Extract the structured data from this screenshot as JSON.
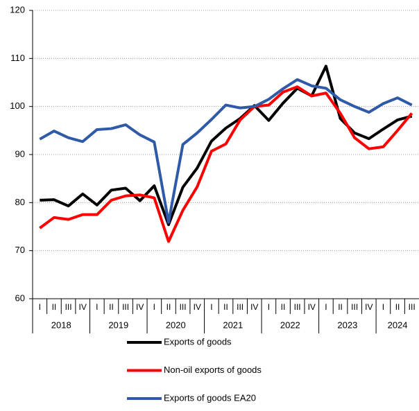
{
  "chart_data": {
    "type": "line",
    "categories": [
      "I",
      "II",
      "III",
      "IV",
      "I",
      "II",
      "III",
      "IV",
      "I",
      "II",
      "III",
      "IV",
      "I",
      "II",
      "III",
      "IV",
      "I",
      "II",
      "III",
      "IV",
      "I",
      "II",
      "III",
      "IV",
      "I",
      "II",
      "III"
    ],
    "years": [
      "2018",
      "2019",
      "2020",
      "2021",
      "2022",
      "2023",
      "2024"
    ],
    "series": [
      {
        "name": "Exports of goods",
        "color": "#000000",
        "values": [
          80.5,
          80.6,
          79.3,
          81.8,
          79.5,
          82.6,
          83.0,
          80.4,
          83.5,
          75.4,
          83.2,
          87.2,
          92.8,
          95.5,
          97.5,
          100.2,
          97.1,
          100.7,
          103.8,
          102.2,
          108.4,
          97.5,
          94.5,
          93.3,
          95.3,
          97.2,
          98.0
        ]
      },
      {
        "name": "Non-oil exports of goods",
        "color": "#ff0000",
        "values": [
          74.7,
          76.9,
          76.5,
          77.5,
          77.5,
          80.5,
          81.4,
          81.6,
          81.0,
          71.9,
          78.4,
          83.3,
          90.7,
          92.2,
          97.2,
          100.0,
          100.3,
          103.0,
          104.1,
          102.2,
          102.8,
          98.6,
          93.5,
          91.2,
          91.6,
          95.0,
          98.6
        ]
      },
      {
        "name": "Exports of goods EA20",
        "color": "#2f5aa8",
        "values": [
          93.2,
          94.9,
          93.5,
          92.7,
          95.2,
          95.4,
          96.2,
          94.1,
          92.6,
          75.9,
          92.1,
          94.5,
          97.3,
          100.3,
          99.7,
          100.0,
          101.5,
          103.7,
          105.6,
          104.3,
          103.8,
          101.4,
          100.0,
          98.8,
          100.6,
          101.8,
          100.3
        ]
      }
    ],
    "ylim": [
      60,
      120
    ],
    "yticks": [
      60,
      70,
      80,
      90,
      100,
      110,
      120
    ],
    "grid": true
  }
}
